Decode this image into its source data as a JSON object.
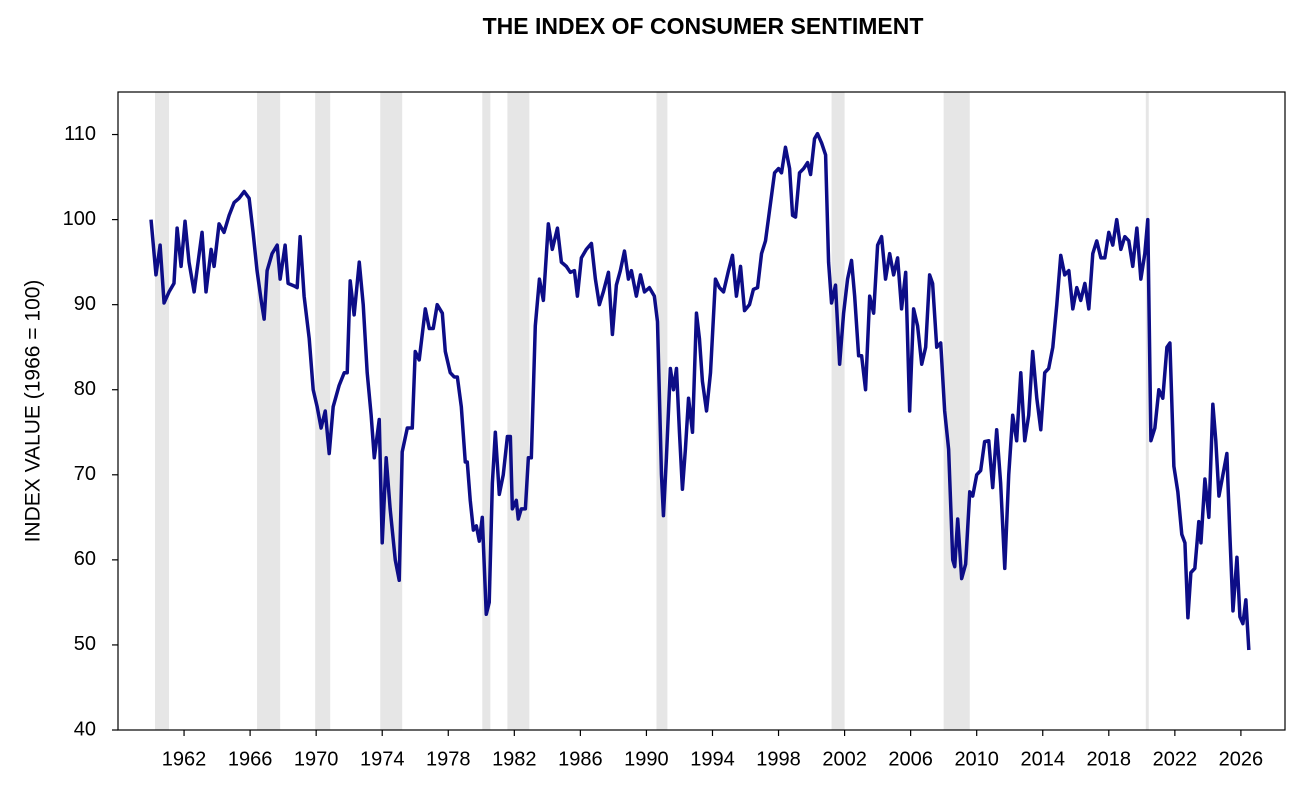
{
  "chart_data": {
    "type": "line",
    "title": "THE INDEX OF CONSUMER SENTIMENT",
    "y_label": "INDEX VALUE (1966 = 100)",
    "xlim": [
      1958,
      2028.67
    ],
    "ylim": [
      40,
      115
    ],
    "xticks": [
      1962,
      1966,
      1970,
      1974,
      1978,
      1982,
      1986,
      1990,
      1994,
      1998,
      2002,
      2006,
      2010,
      2014,
      2018,
      2022,
      2026
    ],
    "yticks": [
      40,
      50,
      60,
      70,
      80,
      90,
      100,
      110
    ],
    "grid": false,
    "shaded_periods": [
      [
        1960.24,
        1961.09
      ],
      [
        1966.42,
        1967.82
      ],
      [
        1969.94,
        1970.85
      ],
      [
        1973.88,
        1975.21
      ],
      [
        1980.06,
        1980.55
      ],
      [
        1981.58,
        1982.91
      ],
      [
        1990.61,
        1991.27
      ],
      [
        2001.21,
        2002.0
      ],
      [
        2008.0,
        2009.58
      ],
      [
        2020.24,
        2020.42
      ]
    ],
    "shade_color": "#e6e6e6",
    "series": [
      {
        "color": "#0d0d87",
        "x": [
          1960.0,
          1960.3,
          1960.55,
          1960.79,
          1961.09,
          1961.39,
          1961.58,
          1961.82,
          1962.06,
          1962.3,
          1962.61,
          1963.09,
          1963.33,
          1963.64,
          1963.82,
          1964.12,
          1964.42,
          1964.73,
          1965.03,
          1965.33,
          1965.64,
          1965.94,
          1966.18,
          1966.42,
          1966.67,
          1966.85,
          1967.03,
          1967.33,
          1967.64,
          1967.82,
          1968.12,
          1968.3,
          1968.67,
          1968.85,
          1969.03,
          1969.27,
          1969.58,
          1969.82,
          1970.06,
          1970.3,
          1970.55,
          1970.79,
          1971.03,
          1971.39,
          1971.7,
          1971.88,
          1972.06,
          1972.3,
          1972.61,
          1972.85,
          1973.09,
          1973.33,
          1973.52,
          1973.82,
          1974.0,
          1974.24,
          1974.48,
          1974.79,
          1975.03,
          1975.21,
          1975.52,
          1975.82,
          1976.0,
          1976.24,
          1976.61,
          1976.85,
          1977.09,
          1977.33,
          1977.64,
          1977.82,
          1978.12,
          1978.36,
          1978.55,
          1978.79,
          1979.03,
          1979.15,
          1979.33,
          1979.52,
          1979.7,
          1979.88,
          1980.06,
          1980.3,
          1980.48,
          1980.67,
          1980.85,
          1981.09,
          1981.33,
          1981.58,
          1981.76,
          1981.88,
          1982.12,
          1982.24,
          1982.42,
          1982.67,
          1982.85,
          1983.03,
          1983.27,
          1983.52,
          1983.76,
          1984.06,
          1984.3,
          1984.61,
          1984.85,
          1985.15,
          1985.39,
          1985.64,
          1985.82,
          1986.06,
          1986.36,
          1986.67,
          1986.91,
          1987.15,
          1987.39,
          1987.7,
          1987.94,
          1988.18,
          1988.42,
          1988.67,
          1988.91,
          1989.09,
          1989.39,
          1989.64,
          1989.88,
          1990.18,
          1990.48,
          1990.67,
          1990.91,
          1991.03,
          1991.21,
          1991.45,
          1991.64,
          1991.82,
          1992.0,
          1992.18,
          1992.36,
          1992.55,
          1992.79,
          1993.03,
          1993.21,
          1993.39,
          1993.64,
          1993.88,
          1994.18,
          1994.42,
          1994.67,
          1994.97,
          1995.21,
          1995.45,
          1995.7,
          1995.94,
          1996.24,
          1996.48,
          1996.73,
          1996.97,
          1997.21,
          1997.45,
          1997.76,
          1998.0,
          1998.18,
          1998.42,
          1998.67,
          1998.85,
          1999.03,
          1999.27,
          1999.52,
          1999.76,
          1999.94,
          2000.18,
          2000.36,
          2000.61,
          2000.85,
          2001.03,
          2001.21,
          2001.45,
          2001.7,
          2001.94,
          2002.18,
          2002.42,
          2002.61,
          2002.85,
          2003.03,
          2003.27,
          2003.52,
          2003.76,
          2004.0,
          2004.24,
          2004.48,
          2004.73,
          2004.97,
          2005.21,
          2005.45,
          2005.7,
          2005.94,
          2006.18,
          2006.42,
          2006.67,
          2006.91,
          2007.15,
          2007.33,
          2007.58,
          2007.82,
          2008.06,
          2008.3,
          2008.55,
          2008.67,
          2008.85,
          2009.09,
          2009.33,
          2009.58,
          2009.76,
          2010.0,
          2010.24,
          2010.48,
          2010.73,
          2010.97,
          2011.21,
          2011.45,
          2011.7,
          2011.94,
          2012.18,
          2012.42,
          2012.67,
          2012.91,
          2013.15,
          2013.39,
          2013.64,
          2013.88,
          2014.12,
          2014.36,
          2014.61,
          2014.85,
          2015.09,
          2015.33,
          2015.58,
          2015.82,
          2016.06,
          2016.3,
          2016.55,
          2016.79,
          2017.03,
          2017.27,
          2017.52,
          2017.76,
          2018.0,
          2018.24,
          2018.48,
          2018.73,
          2018.97,
          2019.21,
          2019.45,
          2019.7,
          2019.94,
          2020.18,
          2020.36,
          2020.55,
          2020.79,
          2021.03,
          2021.27,
          2021.52,
          2021.7,
          2021.94,
          2022.18,
          2022.42,
          2022.61,
          2022.79,
          2022.97,
          2023.21,
          2023.45,
          2023.58,
          2023.82,
          2024.06,
          2024.3,
          2024.48,
          2024.67,
          2024.91,
          2025.15,
          2025.33,
          2025.52,
          2025.76,
          2025.94,
          2026.12,
          2026.3,
          2026.48
        ],
        "values": [
          100,
          93.5,
          97,
          90.2,
          91.5,
          92.5,
          99,
          94.5,
          99.8,
          95,
          91.5,
          98.5,
          91.5,
          96.5,
          94.5,
          99.5,
          98.5,
          100.5,
          102,
          102.5,
          103.3,
          102.5,
          98.5,
          94,
          90.5,
          88.3,
          94,
          96,
          97,
          93,
          97,
          92.5,
          92.2,
          92,
          98,
          91,
          86,
          80,
          78,
          75.5,
          77.5,
          72.5,
          78,
          80.5,
          82,
          82,
          92.8,
          88.8,
          95,
          90,
          82,
          77,
          72,
          76.5,
          62,
          72,
          66,
          60,
          57.6,
          72.7,
          75.5,
          75.5,
          84.5,
          83.5,
          89.5,
          87.2,
          87.2,
          90,
          89,
          84.5,
          82,
          81.5,
          81.5,
          78,
          71.5,
          71.5,
          67,
          63.5,
          64,
          62.2,
          65,
          53.6,
          55,
          69,
          75,
          67.7,
          70,
          74.5,
          74.5,
          66,
          67,
          64.8,
          66,
          66,
          72,
          72,
          87.5,
          93,
          90.5,
          99.5,
          96.5,
          99,
          95,
          94.5,
          93.8,
          94,
          91,
          95.5,
          96.5,
          97.2,
          93,
          90,
          91.5,
          93.8,
          86.5,
          92.3,
          94,
          96.3,
          93,
          94,
          91,
          93.5,
          91.5,
          92,
          91,
          88,
          70,
          65.2,
          72,
          82.5,
          80,
          82.5,
          75,
          68.3,
          73,
          79,
          75,
          89,
          86,
          81,
          77.5,
          82,
          93,
          92,
          91.5,
          94,
          95.8,
          91,
          94.5,
          89.3,
          90,
          91.8,
          92,
          96,
          97.5,
          101,
          105.5,
          106,
          105.5,
          108.5,
          106,
          100.5,
          100.3,
          105.5,
          106,
          106.7,
          105.3,
          109.5,
          110.1,
          109,
          107.6,
          95,
          90.2,
          92.3,
          83,
          89,
          93,
          95.2,
          91,
          84,
          84,
          80,
          91,
          89,
          97,
          98,
          93,
          96,
          93.5,
          95.5,
          89.5,
          93.8,
          77.5,
          89.5,
          87.5,
          83,
          85,
          93.5,
          92.5,
          85,
          85.5,
          77.5,
          73,
          60,
          59.2,
          64.8,
          57.8,
          59.5,
          68,
          67.5,
          70,
          70.5,
          73.9,
          74,
          68.5,
          75.3,
          69,
          59,
          70,
          77,
          74,
          82,
          74,
          77,
          84.5,
          79,
          75.3,
          82,
          82.5,
          85,
          90,
          95.8,
          93.5,
          94,
          89.5,
          92,
          90.5,
          92.5,
          89.5,
          96,
          97.5,
          95.5,
          95.5,
          98.5,
          97,
          100,
          96.5,
          98,
          97.5,
          94.5,
          99,
          93,
          96,
          100,
          74,
          75.5,
          80,
          79,
          85,
          85.5,
          71,
          68,
          63,
          62,
          53.2,
          58.5,
          59,
          64.5,
          62,
          69.5,
          65,
          78.3,
          74,
          67.5,
          70,
          72.5,
          63,
          54,
          60.3,
          53.3,
          52.5,
          55.3,
          49.4
        ]
      }
    ]
  }
}
